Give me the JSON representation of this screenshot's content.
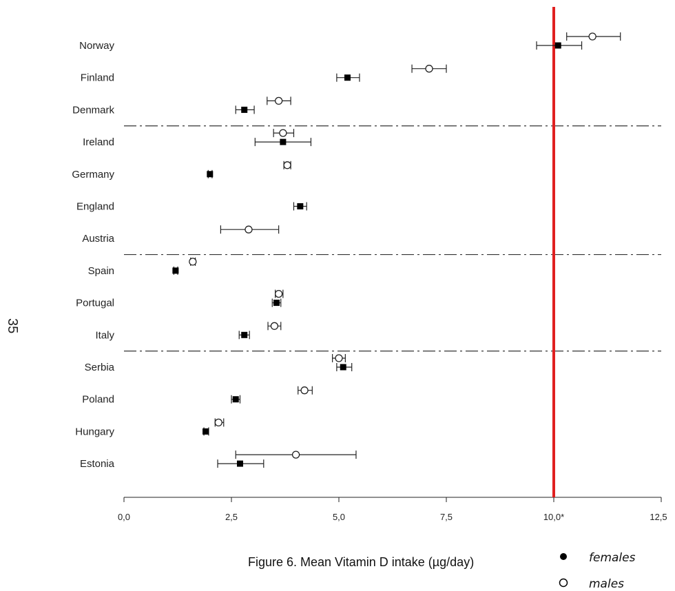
{
  "page_number": "35",
  "chart_data": {
    "type": "scatter",
    "title": "Figure 6. Mean Vitamin D intake (µg/day)",
    "categories": [
      "Norway",
      "Finland",
      "Denmark",
      "Ireland",
      "Germany",
      "England",
      "Austria",
      "Spain",
      "Portugal",
      "Italy",
      "Serbia",
      "Poland",
      "Hungary",
      "Estonia"
    ],
    "x_ticks": [
      "0,0",
      "2,5",
      "5,0",
      "7,5",
      "10,0*",
      "12,5"
    ],
    "xlim": [
      0,
      12.5
    ],
    "reference_line": {
      "x": 10.0,
      "color": "#e02020"
    },
    "group_separators_after": [
      "Denmark",
      "Austria",
      "Italy"
    ],
    "series": [
      {
        "name": "females",
        "marker": "filled-square",
        "points": [
          {
            "country": "Norway",
            "mean": 10.1,
            "low": 9.6,
            "high": 10.65
          },
          {
            "country": "Finland",
            "mean": 5.2,
            "low": 4.95,
            "high": 5.48
          },
          {
            "country": "Denmark",
            "mean": 2.8,
            "low": 2.6,
            "high": 3.03
          },
          {
            "country": "Ireland",
            "mean": 3.7,
            "low": 3.05,
            "high": 4.35
          },
          {
            "country": "Germany",
            "mean": 2.0,
            "low": 1.96,
            "high": 2.05
          },
          {
            "country": "England",
            "mean": 4.1,
            "low": 3.95,
            "high": 4.25
          },
          {
            "country": "Spain",
            "mean": 1.2,
            "low": 1.16,
            "high": 1.25
          },
          {
            "country": "Portugal",
            "mean": 3.55,
            "low": 3.45,
            "high": 3.65
          },
          {
            "country": "Italy",
            "mean": 2.8,
            "low": 2.68,
            "high": 2.92
          },
          {
            "country": "Serbia",
            "mean": 5.1,
            "low": 4.95,
            "high": 5.3
          },
          {
            "country": "Poland",
            "mean": 2.6,
            "low": 2.5,
            "high": 2.7
          },
          {
            "country": "Hungary",
            "mean": 1.9,
            "low": 1.86,
            "high": 1.97
          },
          {
            "country": "Estonia",
            "mean": 2.7,
            "low": 2.18,
            "high": 3.25
          }
        ]
      },
      {
        "name": "males",
        "marker": "open-circle",
        "points": [
          {
            "country": "Norway",
            "mean": 10.9,
            "low": 10.3,
            "high": 11.55
          },
          {
            "country": "Finland",
            "mean": 7.1,
            "low": 6.7,
            "high": 7.5
          },
          {
            "country": "Denmark",
            "mean": 3.6,
            "low": 3.33,
            "high": 3.88
          },
          {
            "country": "Ireland",
            "mean": 3.7,
            "low": 3.48,
            "high": 3.95
          },
          {
            "country": "Germany",
            "mean": 3.8,
            "low": 3.72,
            "high": 3.88
          },
          {
            "country": "Austria",
            "mean": 2.9,
            "low": 2.25,
            "high": 3.6
          },
          {
            "country": "Spain",
            "mean": 1.6,
            "low": 1.55,
            "high": 1.66
          },
          {
            "country": "Portugal",
            "mean": 3.6,
            "low": 3.52,
            "high": 3.7
          },
          {
            "country": "Italy",
            "mean": 3.5,
            "low": 3.35,
            "high": 3.65
          },
          {
            "country": "Serbia",
            "mean": 5.0,
            "low": 4.85,
            "high": 5.15
          },
          {
            "country": "Poland",
            "mean": 4.2,
            "low": 4.05,
            "high": 4.38
          },
          {
            "country": "Hungary",
            "mean": 2.2,
            "low": 2.12,
            "high": 2.32
          },
          {
            "country": "Estonia",
            "mean": 4.0,
            "low": 2.6,
            "high": 5.4
          }
        ]
      }
    ],
    "legend": {
      "placement": "bottom-right",
      "entries": [
        "females",
        "males"
      ]
    }
  }
}
